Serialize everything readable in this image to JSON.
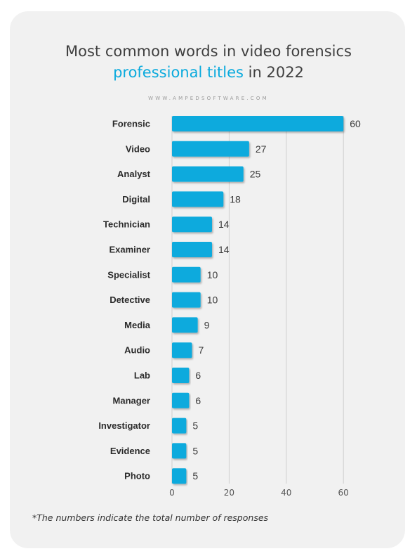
{
  "header": {
    "title_line1": "Most common words in video forensics",
    "title_highlight": "professional titles",
    "title_rest": " in 2022",
    "website": "WWW.AMPEDSOFTWARE.COM"
  },
  "footnote": "*The numbers indicate the total number of responses",
  "colors": {
    "bar": "#0aaadd",
    "title_highlight": "#0aaadd",
    "grid": "#cfcfcf"
  },
  "chart_data": {
    "type": "bar",
    "orientation": "horizontal",
    "categories": [
      "Forensic",
      "Video",
      "Analyst",
      "Digital",
      "Technician",
      "Examiner",
      "Specialist",
      "Detective",
      "Media",
      "Audio",
      "Lab",
      "Manager",
      "Investigator",
      "Evidence",
      "Photo"
    ],
    "values": [
      60,
      27,
      25,
      18,
      14,
      14,
      10,
      10,
      9,
      7,
      6,
      6,
      5,
      5,
      5
    ],
    "xlim": [
      0,
      60
    ],
    "xticks": [
      0,
      20,
      40,
      60
    ],
    "grid": true,
    "data_labels": true
  }
}
